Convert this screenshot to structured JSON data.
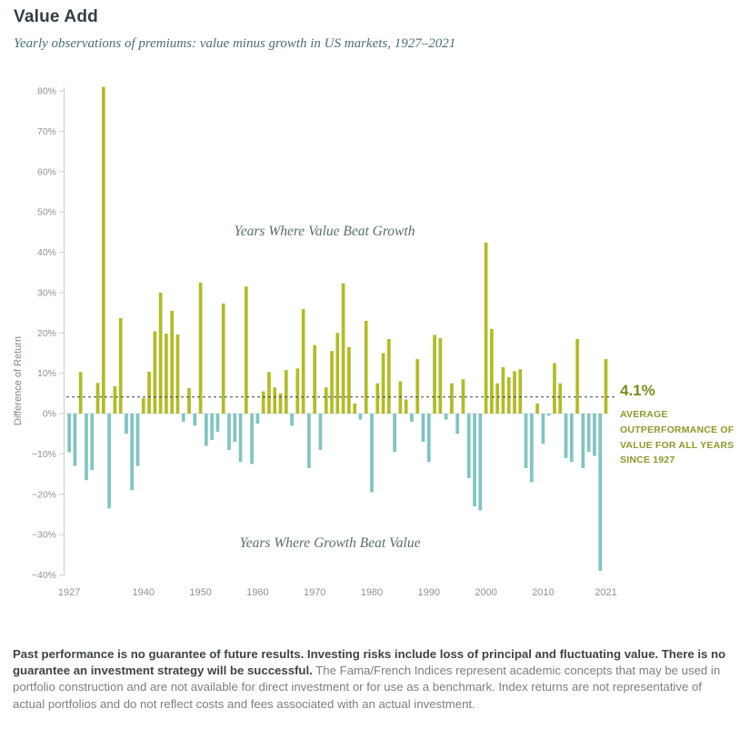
{
  "page": {
    "title": "Value Add",
    "subtitle": "Yearly observations of premiums: value minus growth in US markets, 1927–2021"
  },
  "chart_data": {
    "type": "bar",
    "title": "Value Add",
    "subtitle": "Yearly observations of premiums: value minus growth in US markets, 1927–2021",
    "ylabel": "Difference of Return",
    "ylim": [
      -40,
      80
    ],
    "y_ticks": [
      "80%",
      "70%",
      "60%",
      "50%",
      "40%",
      "30%",
      "20%",
      "10%",
      "0%",
      "−10%",
      "−20%",
      "−30%",
      "−40%"
    ],
    "x_tick_years": [
      1927,
      1940,
      1950,
      1960,
      1970,
      1980,
      1990,
      2000,
      2010,
      2021
    ],
    "start_year": 1927,
    "end_year": 2021,
    "values": [
      -9.6,
      -13,
      10.3,
      -16.5,
      -14,
      7.6,
      81,
      -23.5,
      6.8,
      23.7,
      -5,
      -19,
      -13,
      3.8,
      10.4,
      20.4,
      30,
      19.8,
      25.5,
      19.6,
      -2,
      6.3,
      -3,
      32.5,
      -8,
      -6.5,
      -4.5,
      27.3,
      -9,
      -7,
      -12,
      31.5,
      -12.5,
      -2.5,
      5.5,
      10.3,
      6.5,
      5,
      10.8,
      -3,
      11.2,
      25.9,
      -13.5,
      17,
      -9,
      6.5,
      15.5,
      20,
      32.3,
      16.5,
      2.5,
      -1.5,
      23,
      -19.5,
      7.5,
      15,
      18.5,
      -9.5,
      8,
      3.5,
      -2,
      13.5,
      -7,
      -12,
      19.5,
      18.7,
      -1.5,
      7.5,
      -5,
      8.5,
      -16,
      -23,
      -24,
      42.4,
      21,
      7.5,
      11.5,
      9,
      10.5,
      11,
      -13.5,
      -17,
      2.5,
      -7.5,
      -0.5,
      12.5,
      7.5,
      -11,
      -12,
      18.5,
      -13.5,
      -9.5,
      -10.5,
      -39,
      13.5
    ],
    "positive_color": "#b1bc26",
    "negative_color": "#7fc5c1",
    "average_line_value": 4.1,
    "legend_position": "none",
    "grid": false,
    "annotations": {
      "positive_region": "Years Where Value Beat Growth",
      "negative_region": "Years Where Growth Beat Value",
      "average_value_label": "4.1%",
      "average_caption": "AVERAGE OUTPERFORMANCE OF VALUE FOR ALL YEARS SINCE 1927"
    }
  },
  "footer": {
    "bold_text": "Past performance is no guarantee of future results. Investing risks include loss of principal and fluctuating value. There is no guarantee an investment strategy will be successful.",
    "regular_text": "The Fama/French Indices represent academic concepts that may be used in portfolio construction and are not available for direct investment or for use as a benchmark.  Index returns are not representative of actual portfolios and do not reflect costs and fees associated with an actual investment."
  }
}
